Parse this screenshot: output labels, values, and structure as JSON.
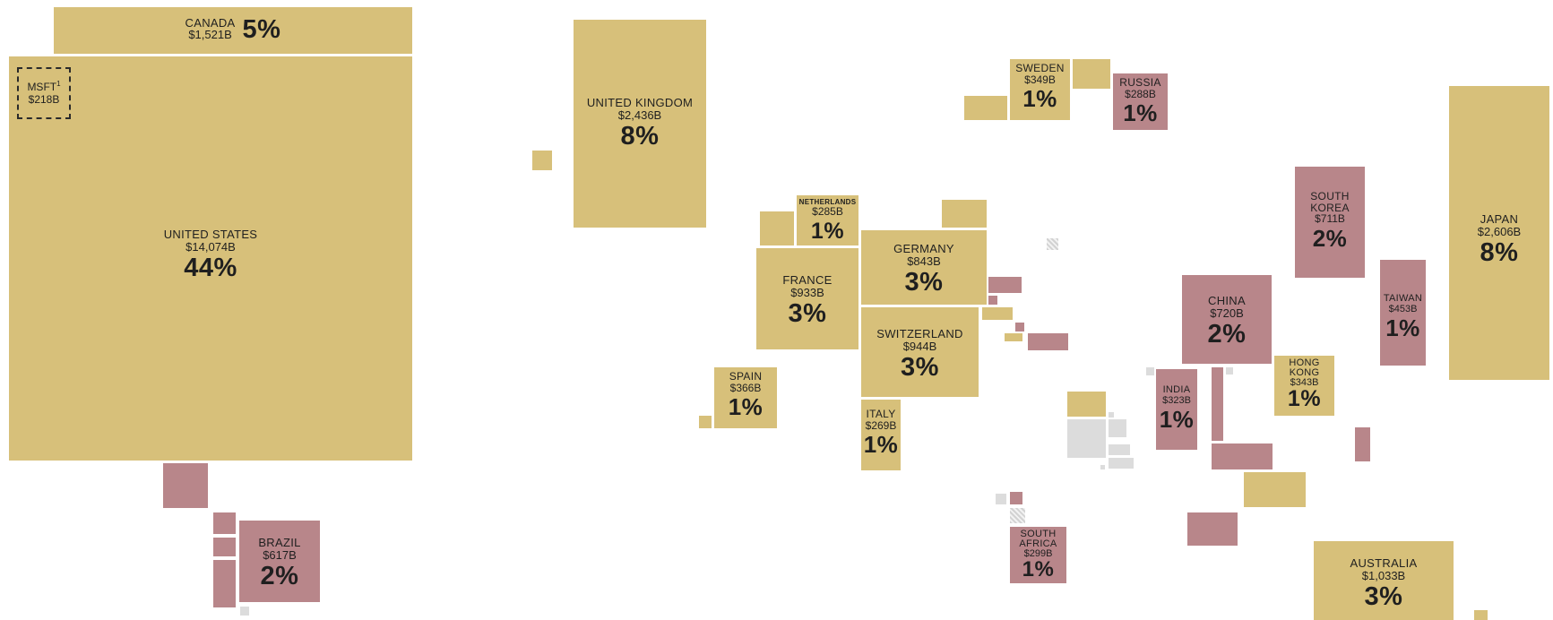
{
  "map": {
    "countries": {
      "canada": {
        "name": "CANADA",
        "value": "$1,521B",
        "share": "5%"
      },
      "united_states": {
        "name": "UNITED STATES",
        "value": "$14,074B",
        "share": "44%"
      },
      "msft": {
        "name": "MSFT",
        "footnote": "1",
        "value": "$218B"
      },
      "brazil": {
        "name": "BRAZIL",
        "value": "$617B",
        "share": "2%"
      },
      "united_kingdom": {
        "name": "UNITED KINGDOM",
        "value": "$2,436B",
        "share": "8%"
      },
      "netherlands": {
        "name": "NETHERLANDS",
        "value": "$285B",
        "share": "1%"
      },
      "germany": {
        "name": "GERMANY",
        "value": "$843B",
        "share": "3%"
      },
      "france": {
        "name": "FRANCE",
        "value": "$933B",
        "share": "3%"
      },
      "switzerland": {
        "name": "SWITZERLAND",
        "value": "$944B",
        "share": "3%"
      },
      "spain": {
        "name": "SPAIN",
        "value": "$366B",
        "share": "1%"
      },
      "italy": {
        "name": "ITALY",
        "value": "$269B",
        "share": "1%"
      },
      "sweden": {
        "name": "SWEDEN",
        "value": "$349B",
        "share": "1%"
      },
      "russia": {
        "name": "RUSSIA",
        "value": "$288B",
        "share": "1%"
      },
      "south_africa": {
        "name_line1": "SOUTH",
        "name_line2": "AFRICA",
        "value": "$299B",
        "share": "1%"
      },
      "china": {
        "name": "CHINA",
        "value": "$720B",
        "share": "2%"
      },
      "india": {
        "name": "INDIA",
        "value": "$323B",
        "share": "1%"
      },
      "hong_kong": {
        "name_line1": "HONG",
        "name_line2": "KONG",
        "value": "$343B",
        "share": "1%"
      },
      "south_korea": {
        "name_line1": "SOUTH",
        "name_line2": "KOREA",
        "value": "$711B",
        "share": "2%"
      },
      "taiwan": {
        "name": "TAIWAN",
        "value": "$453B",
        "share": "1%"
      },
      "japan": {
        "name": "JAPAN",
        "value": "$2,606B",
        "share": "8%"
      },
      "australia": {
        "name": "AUSTRALIA",
        "value": "$1,033B",
        "share": "3%"
      }
    },
    "colors": {
      "developed": "#d7c07a",
      "emerging": "#b8868a",
      "other": "#dcdcdc"
    }
  }
}
